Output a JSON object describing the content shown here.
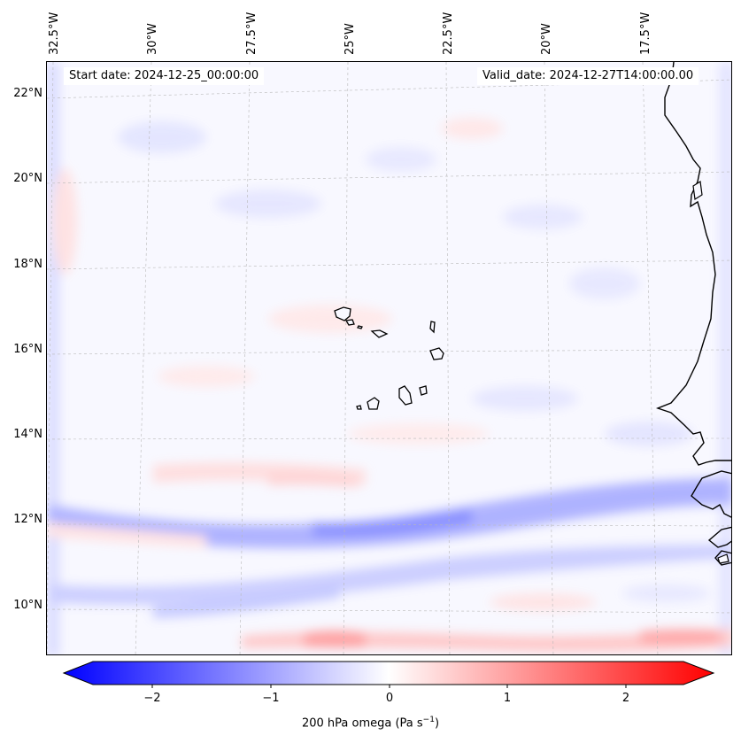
{
  "map": {
    "start_date_label": "Start date: 2024-12-25_00:00:00",
    "valid_date_label": "Valid_date: 2024-12-27T14:00:00.00",
    "variable": "200 hPa omega",
    "region": "Eastern tropical Atlantic near Cape Verde and West African coast"
  },
  "longitude_labels": [
    "32.5°W",
    "30°W",
    "27.5°W",
    "25°W",
    "22.5°W",
    "20°W",
    "17.5°W"
  ],
  "latitude_labels": [
    "22°N",
    "20°N",
    "18°N",
    "16°N",
    "14°N",
    "12°N",
    "10°N"
  ],
  "colorbar": {
    "ticks": [
      "−2",
      "−1",
      "0",
      "1",
      "2"
    ],
    "label": "200 hPa omega (Pa s",
    "label_superscript": "−1",
    "label_close": ")",
    "range": [
      -2.6,
      2.6
    ],
    "colors": {
      "negative": "#0000ff",
      "zero": "#ffffff",
      "positive": "#ff0000"
    }
  },
  "colors": {
    "coast": "#000000",
    "grid": "#b0b0b0"
  }
}
